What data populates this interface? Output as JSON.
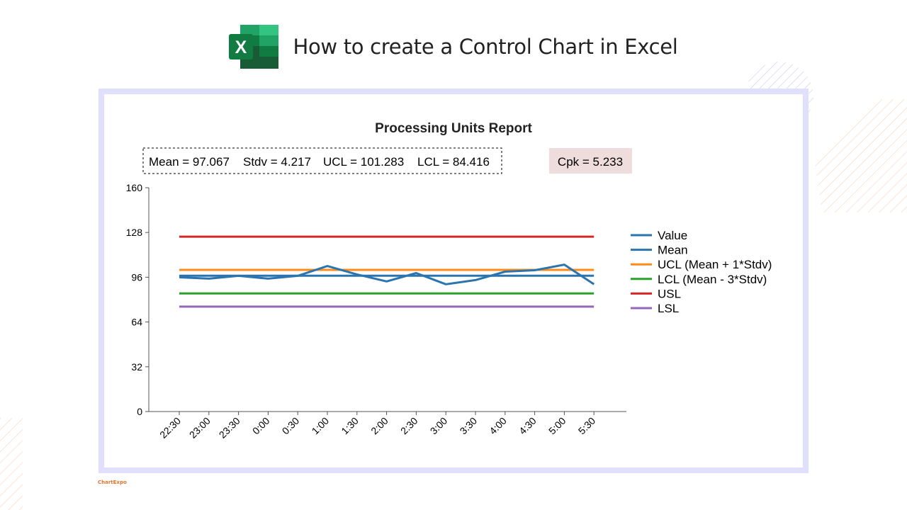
{
  "header": {
    "title": "How to create a Control Chart in Excel",
    "logo_letter": "X"
  },
  "brand": "ChartExpo",
  "chart_data": {
    "type": "line",
    "title": "Processing Units Report",
    "stats_box": {
      "mean_text": "Mean = 97.067",
      "stdv_text": "Stdv = 4.217",
      "ucl_text": "UCL = 101.283",
      "lcl_text": "LCL = 84.416"
    },
    "cpk_text": "Cpk = 5.233",
    "categories": [
      "22:30",
      "23:00",
      "23:30",
      "0:00",
      "0:30",
      "1:00",
      "1:30",
      "2:00",
      "2:30",
      "3:00",
      "3:30",
      "4:00",
      "4:30",
      "5:00",
      "5:30"
    ],
    "ylim": [
      0,
      160
    ],
    "yticks": [
      0,
      32,
      64,
      96,
      128,
      160
    ],
    "legend_position": "right",
    "series": [
      {
        "name": "Value",
        "color": "#2a74b0",
        "values": [
          96,
          95,
          97,
          95,
          97,
          104,
          98,
          93,
          99,
          91,
          94,
          100,
          101,
          105,
          91
        ]
      },
      {
        "name": "Mean",
        "color": "#2a74b0",
        "values": [
          97.067,
          97.067,
          97.067,
          97.067,
          97.067,
          97.067,
          97.067,
          97.067,
          97.067,
          97.067,
          97.067,
          97.067,
          97.067,
          97.067,
          97.067
        ]
      },
      {
        "name": "UCL (Mean + 1*Stdv)",
        "color": "#ff8c1a",
        "values": [
          101.283,
          101.283,
          101.283,
          101.283,
          101.283,
          101.283,
          101.283,
          101.283,
          101.283,
          101.283,
          101.283,
          101.283,
          101.283,
          101.283,
          101.283
        ]
      },
      {
        "name": "LCL (Mean - 3*Stdv)",
        "color": "#2ca02c",
        "values": [
          84.416,
          84.416,
          84.416,
          84.416,
          84.416,
          84.416,
          84.416,
          84.416,
          84.416,
          84.416,
          84.416,
          84.416,
          84.416,
          84.416,
          84.416
        ]
      },
      {
        "name": "USL",
        "color": "#d62728",
        "values": [
          125,
          125,
          125,
          125,
          125,
          125,
          125,
          125,
          125,
          125,
          125,
          125,
          125,
          125,
          125
        ]
      },
      {
        "name": "LSL",
        "color": "#9467bd",
        "values": [
          75,
          75,
          75,
          75,
          75,
          75,
          75,
          75,
          75,
          75,
          75,
          75,
          75,
          75,
          75
        ]
      }
    ]
  }
}
